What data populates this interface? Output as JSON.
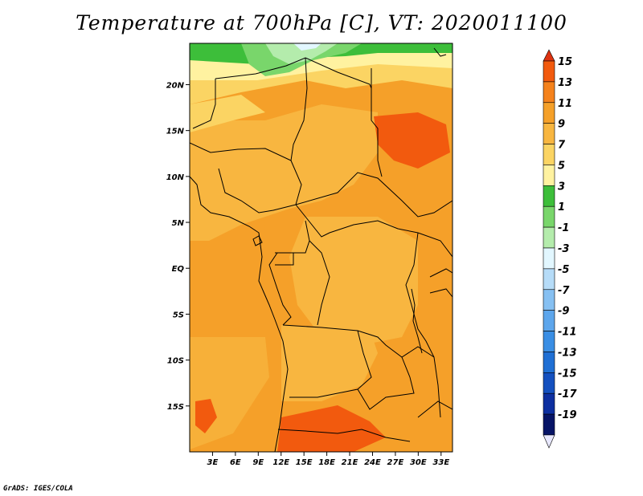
{
  "title": "Temperature at 700hPa [C], VT: 2020011100",
  "footer": "GrADS: IGES/COLA",
  "map": {
    "lon_range": [
      0,
      34.5
    ],
    "lat_range": [
      -20,
      24.5
    ],
    "lon_ticks": [
      {
        "value": 3,
        "label": "3E"
      },
      {
        "value": 6,
        "label": "6E"
      },
      {
        "value": 9,
        "label": "9E"
      },
      {
        "value": 12,
        "label": "12E"
      },
      {
        "value": 15,
        "label": "15E"
      },
      {
        "value": 18,
        "label": "18E"
      },
      {
        "value": 21,
        "label": "21E"
      },
      {
        "value": 24,
        "label": "24E"
      },
      {
        "value": 27,
        "label": "27E"
      },
      {
        "value": 30,
        "label": "30E"
      },
      {
        "value": 33,
        "label": "33E"
      }
    ],
    "lat_ticks": [
      {
        "value": 20,
        "label": "20N"
      },
      {
        "value": 15,
        "label": "15N"
      },
      {
        "value": 10,
        "label": "10N"
      },
      {
        "value": 5,
        "label": "5N"
      },
      {
        "value": 0,
        "label": "EQ"
      },
      {
        "value": -5,
        "label": "5S"
      },
      {
        "value": -10,
        "label": "10S"
      },
      {
        "value": -15,
        "label": "15S"
      }
    ]
  },
  "colorbar": {
    "labels": [
      "15",
      "13",
      "11",
      "9",
      "7",
      "5",
      "3",
      "1",
      "-1",
      "-3",
      "-5",
      "-7",
      "-9",
      "-11",
      "-13",
      "-15",
      "-17",
      "-19"
    ],
    "colors_top_to_bottom": [
      "#dd3311",
      "#f25a0e",
      "#f5821c",
      "#f5a029",
      "#f8b640",
      "#fbd463",
      "#fff2a0",
      "#3dbe3a",
      "#79d66b",
      "#b4ecac",
      "#e2f7ff",
      "#b6dcf8",
      "#86c0f2",
      "#5da6ec",
      "#3a8ee4",
      "#1f6fd4",
      "#1450bf",
      "#0d2fa0",
      "#061466",
      "#e8e8ff"
    ]
  }
}
